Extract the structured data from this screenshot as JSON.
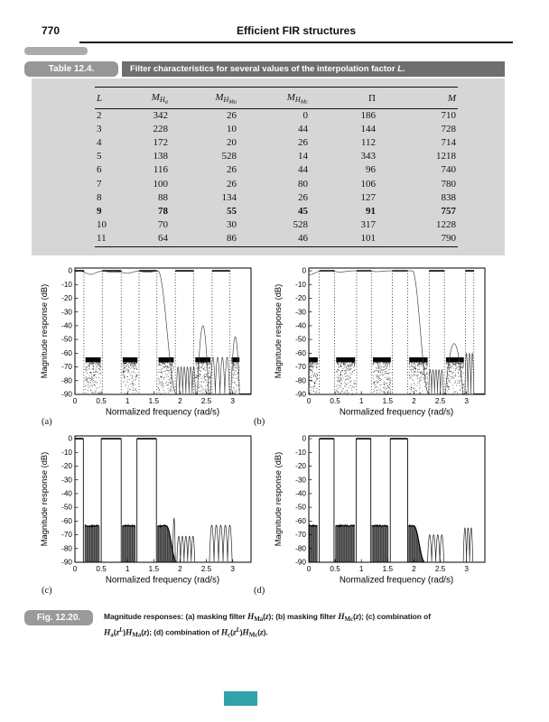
{
  "page": {
    "number": "770",
    "running_title": "Efficient FIR structures"
  },
  "table": {
    "label": "Table 12.4.",
    "title_prefix": "Filter characteristics for several values of the interpolation factor ",
    "title_italic": "L",
    "title_suffix": ".",
    "columns": [
      {
        "base": "L"
      },
      {
        "base": "M",
        "sub": "H",
        "subsub": "a"
      },
      {
        "base": "M",
        "sub": "H",
        "subsub": "Ma"
      },
      {
        "base": "M",
        "sub": "H",
        "subsub": "Mc"
      },
      {
        "base": "Π",
        "upright": true
      },
      {
        "base": "M"
      }
    ],
    "rows": [
      [
        "2",
        "342",
        "26",
        "0",
        "186",
        "710"
      ],
      [
        "3",
        "228",
        "10",
        "44",
        "144",
        "728"
      ],
      [
        "4",
        "172",
        "20",
        "26",
        "112",
        "714"
      ],
      [
        "5",
        "138",
        "528",
        "14",
        "343",
        "1218"
      ],
      [
        "6",
        "116",
        "26",
        "44",
        "96",
        "740"
      ],
      [
        "7",
        "100",
        "26",
        "80",
        "106",
        "780"
      ],
      [
        "8",
        "88",
        "134",
        "26",
        "127",
        "838"
      ],
      [
        "9",
        "78",
        "55",
        "45",
        "91",
        "757"
      ],
      [
        "10",
        "70",
        "30",
        "528",
        "317",
        "1228"
      ],
      [
        "11",
        "64",
        "86",
        "46",
        "101",
        "790"
      ]
    ],
    "bold_row": 7
  },
  "axes": {
    "ylabel": "Magnitude response (dB)",
    "xlabel": "Normalized frequency (rad/s)",
    "xticks": [
      0,
      0.5,
      1,
      1.5,
      2,
      2.5,
      3
    ],
    "xtick_labels": [
      "0",
      "0.5",
      "1",
      "1.5",
      "2",
      "2.5",
      "3"
    ],
    "yticks": [
      0,
      -10,
      -20,
      -30,
      -40,
      -50,
      -60,
      -70,
      -80,
      -90
    ],
    "ytick_labels": [
      "0",
      "-10",
      "-20",
      "-30",
      "-40",
      "-50",
      "-60",
      "-70",
      "-80",
      "-90"
    ],
    "xmax": 3.35,
    "ytop": 2,
    "ybottom": -90
  },
  "plots": [
    {
      "label": "(a)",
      "kind": "periodic",
      "passbands": [
        [
          0,
          0.17
        ],
        [
          0.52,
          0.88
        ],
        [
          1.22,
          1.56
        ],
        [
          1.91,
          2.26
        ],
        [
          2.61,
          2.95
        ]
      ],
      "stipple": [
        [
          0.2,
          0.49
        ],
        [
          0.91,
          1.19
        ],
        [
          1.59,
          1.88
        ],
        [
          2.29,
          2.58
        ],
        [
          2.98,
          3.13
        ]
      ],
      "mask": {
        "dips": [
          [
            0.3,
            -2.6
          ],
          [
            0.72,
            -1.2
          ],
          [
            1.0,
            -1.8
          ],
          [
            1.38,
            -1.1
          ]
        ],
        "pass_end": 1.58,
        "stop_start": 1.93,
        "lobes": [
          {
            "r": [
              1.93,
              2.29
            ],
            "p": -70,
            "n": 6
          },
          {
            "r": [
              2.33,
              2.54
            ],
            "p": -40,
            "n": 1
          },
          {
            "r": [
              2.58,
              2.94
            ],
            "p": -63,
            "n": 4
          },
          {
            "r": [
              2.97,
              3.13
            ],
            "p": -48,
            "n": 1
          }
        ]
      }
    },
    {
      "label": "(b)",
      "kind": "periodic",
      "passbands": [
        [
          0.2,
          0.49
        ],
        [
          0.91,
          1.19
        ],
        [
          1.59,
          1.88
        ],
        [
          2.29,
          2.58
        ],
        [
          2.98,
          3.14
        ]
      ],
      "stipple": [
        [
          0,
          0.17
        ],
        [
          0.52,
          0.88
        ],
        [
          1.22,
          1.56
        ],
        [
          1.91,
          2.26
        ],
        [
          2.61,
          2.95
        ]
      ],
      "mask": {
        "dips": [
          [
            0.02,
            -2.8
          ],
          [
            0.6,
            -0.9
          ],
          [
            1.3,
            -0.6
          ]
        ],
        "pass_end": 1.97,
        "stop_start": 2.28,
        "lobes": [
          {
            "r": [
              2.28,
              2.56
            ],
            "p": -72,
            "n": 5
          },
          {
            "r": [
              2.6,
              2.93
            ],
            "p": -53,
            "n": 1
          },
          {
            "r": [
              2.97,
              3.14
            ],
            "p": -60,
            "n": 3
          }
        ]
      }
    },
    {
      "label": "(c)",
      "kind": "product",
      "passbands": [
        [
          0,
          0.16
        ],
        [
          0.5,
          0.88
        ],
        [
          1.18,
          1.55
        ]
      ],
      "solid": [
        {
          "r": [
            0.19,
            0.47
          ]
        },
        {
          "r": [
            0.9,
            1.15
          ]
        },
        {
          "r": [
            1.57,
            1.93
          ],
          "taper_from": 1.74
        }
      ],
      "lobes": [
        {
          "r": [
            1.86,
            1.91
          ],
          "p": -58,
          "n": 1
        },
        {
          "r": [
            1.94,
            2.28
          ],
          "p": -71,
          "n": 5
        },
        {
          "r": [
            2.56,
            2.99
          ],
          "p": -63,
          "n": 5
        }
      ]
    },
    {
      "label": "(d)",
      "kind": "product",
      "passbands": [
        [
          0.2,
          0.48
        ],
        [
          0.9,
          1.18
        ],
        [
          1.55,
          1.88
        ]
      ],
      "solid": [
        {
          "r": [
            0,
            0.17
          ]
        },
        {
          "r": [
            0.51,
            0.87
          ]
        },
        {
          "r": [
            1.2,
            1.52
          ]
        },
        {
          "r": [
            1.9,
            2.2
          ],
          "taper_from": 2.0
        }
      ],
      "lobes": [
        {
          "r": [
            2.26,
            2.57
          ],
          "p": -70,
          "n": 4
        },
        {
          "r": [
            2.94,
            3.12
          ],
          "p": -65,
          "n": 3
        }
      ]
    }
  ],
  "figure": {
    "label": "Fig. 12.20.",
    "caption": [
      {
        "s": "p",
        "t": "Magnitude responses: (a) masking filter "
      },
      {
        "s": "i",
        "t": "H"
      },
      {
        "s": "sub",
        "t": "Ma"
      },
      {
        "s": "p",
        "t": "("
      },
      {
        "s": "i",
        "t": "z"
      },
      {
        "s": "p",
        "t": "); (b) masking filter "
      },
      {
        "s": "i",
        "t": "H"
      },
      {
        "s": "sub",
        "t": "Mc"
      },
      {
        "s": "p",
        "t": "("
      },
      {
        "s": "i",
        "t": "z"
      },
      {
        "s": "p",
        "t": "); (c) combination of"
      },
      {
        "s": "br"
      },
      {
        "s": "i",
        "t": "H"
      },
      {
        "s": "sub",
        "t": "a"
      },
      {
        "s": "p",
        "t": "("
      },
      {
        "s": "i",
        "t": "z"
      },
      {
        "s": "supi",
        "t": "L"
      },
      {
        "s": "p",
        "t": ")"
      },
      {
        "s": "i",
        "t": "H"
      },
      {
        "s": "sub",
        "t": "Ma"
      },
      {
        "s": "p",
        "t": "("
      },
      {
        "s": "i",
        "t": "z"
      },
      {
        "s": "p",
        "t": "); (d) combination of "
      },
      {
        "s": "i",
        "t": "H"
      },
      {
        "s": "sub",
        "t": "c"
      },
      {
        "s": "p",
        "t": "("
      },
      {
        "s": "i",
        "t": "z"
      },
      {
        "s": "supi",
        "t": "L"
      },
      {
        "s": "p",
        "t": ")"
      },
      {
        "s": "i",
        "t": "H"
      },
      {
        "s": "sub",
        "t": "Mc"
      },
      {
        "s": "p",
        "t": "("
      },
      {
        "s": "i",
        "t": "z"
      },
      {
        "s": "p",
        "t": ")."
      }
    ]
  },
  "marker": {
    "color": "#2FA3A8"
  }
}
